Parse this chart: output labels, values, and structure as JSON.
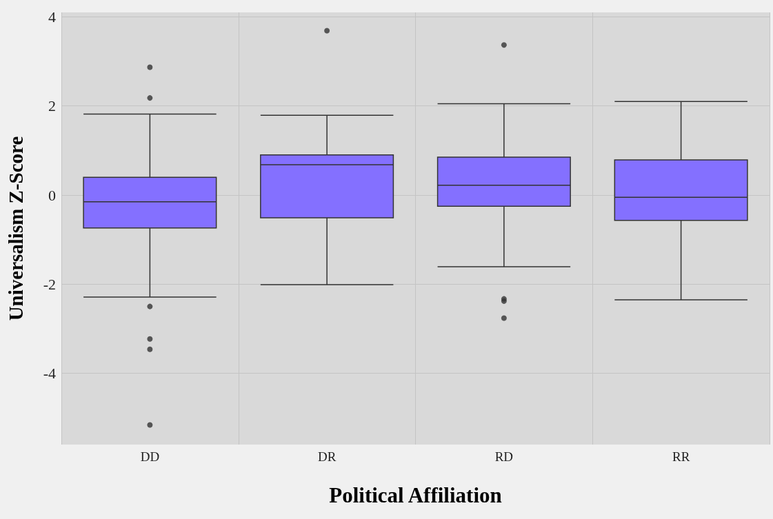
{
  "chart_data": {
    "type": "box",
    "xlabel": "Political Affiliation",
    "ylabel": "Universalism Z-Score",
    "categories": [
      "DD",
      "DR",
      "RD",
      "RR"
    ],
    "color": "#8470ff",
    "ylim": [
      -5.6,
      4.1
    ],
    "yticks": [
      -4,
      -2,
      0,
      2,
      4
    ],
    "grid": true,
    "boxes": [
      {
        "low": -2.29,
        "q1": -0.74,
        "median": -0.15,
        "q3": 0.4,
        "high": 1.82,
        "outliers": [
          2.87,
          2.18,
          -2.5,
          -3.23,
          -3.46,
          -5.16
        ]
      },
      {
        "low": -2.01,
        "q1": -0.51,
        "median": 0.68,
        "q3": 0.9,
        "high": 1.79,
        "outliers": [
          3.69
        ]
      },
      {
        "low": -1.61,
        "q1": -0.25,
        "median": 0.22,
        "q3": 0.85,
        "high": 2.05,
        "outliers": [
          3.37,
          -2.33,
          -2.38,
          -2.76
        ]
      },
      {
        "low": -2.35,
        "q1": -0.57,
        "median": -0.05,
        "q3": 0.79,
        "high": 2.1
      }
    ]
  }
}
